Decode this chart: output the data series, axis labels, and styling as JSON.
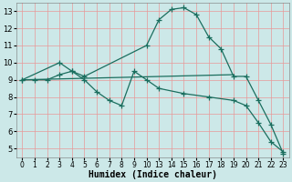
{
  "bg_color": "#cce8e8",
  "grid_color": "#e89898",
  "line_color": "#1a6e5e",
  "line_width": 0.9,
  "marker": "+",
  "marker_size": 4,
  "marker_ew": 0.9,
  "xlabel": "Humidex (Indice chaleur)",
  "xlabel_fontsize": 7,
  "tick_fontsize": 6,
  "xlim": [
    -0.5,
    21.5
  ],
  "ylim": [
    4.5,
    13.5
  ],
  "yticks": [
    5,
    6,
    7,
    8,
    9,
    10,
    11,
    12,
    13
  ],
  "xtick_pos": [
    0,
    1,
    2,
    3,
    4,
    5,
    6,
    7,
    8,
    9,
    10,
    11,
    12,
    13,
    14,
    15,
    16,
    17,
    18,
    19,
    20,
    21
  ],
  "xtick_label": [
    "0",
    "1",
    "2",
    "3",
    "4",
    "5",
    "6",
    "7",
    "8",
    "9",
    "10",
    "13",
    "14",
    "15",
    "16",
    "17",
    "18",
    "19",
    "20",
    "21",
    "22",
    "23"
  ],
  "line1_x": [
    0,
    1,
    2,
    3,
    4,
    5,
    10,
    11,
    12,
    13,
    14,
    15,
    16,
    17,
    18,
    19,
    20,
    21
  ],
  "line1_y": [
    9.0,
    9.0,
    9.0,
    9.3,
    9.5,
    9.2,
    11.0,
    12.5,
    13.1,
    13.2,
    12.8,
    11.5,
    10.8,
    9.2,
    9.2,
    7.8,
    6.4,
    4.7
  ],
  "line2_x": [
    0,
    17
  ],
  "line2_y": [
    9.0,
    9.3
  ],
  "line3_x": [
    0,
    3,
    4,
    5,
    6,
    7,
    8,
    9,
    10,
    11,
    13,
    15,
    17,
    18,
    19,
    20,
    21
  ],
  "line3_y": [
    9.0,
    10.0,
    9.5,
    9.0,
    8.3,
    7.8,
    7.5,
    9.5,
    9.0,
    8.5,
    8.2,
    8.0,
    7.8,
    7.5,
    6.5,
    5.4,
    4.8
  ]
}
